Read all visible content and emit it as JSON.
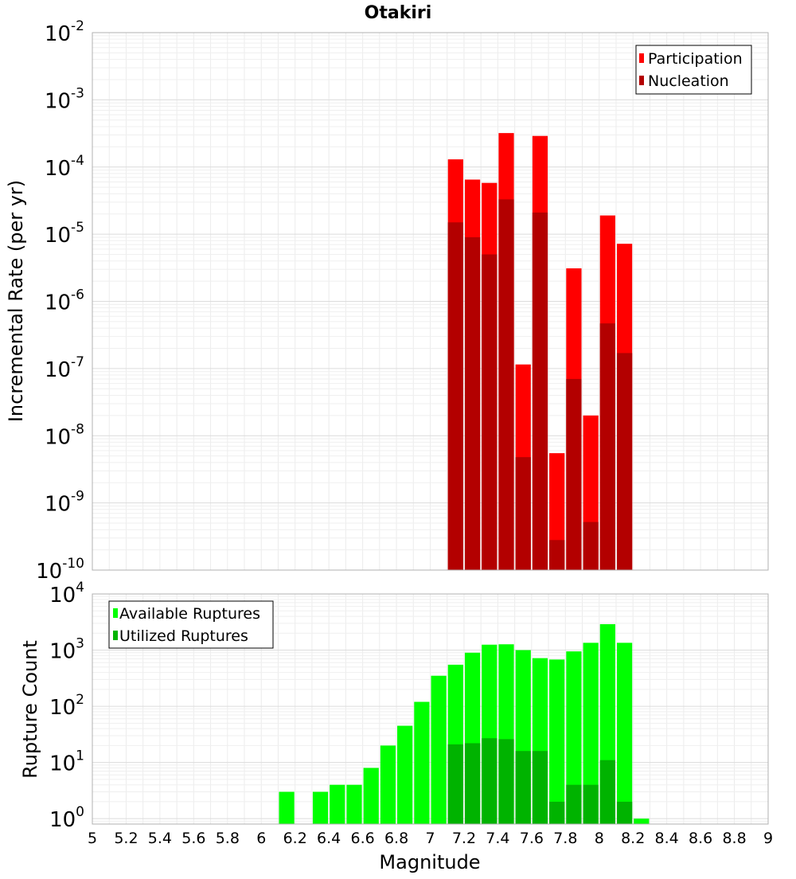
{
  "chart_data": [
    {
      "type": "bar",
      "title": "Otakiri",
      "xlabel": "",
      "ylabel": "Incremental Rate (per yr)",
      "yscale": "log",
      "ylim": [
        1e-10,
        0.01
      ],
      "xlim": [
        5,
        9
      ],
      "y_tick_bases": [
        "10",
        "10",
        "10",
        "10",
        "10",
        "10",
        "10",
        "10",
        "10"
      ],
      "y_tick_exponents": [
        "-10",
        "-9",
        "-8",
        "-7",
        "-6",
        "-5",
        "-4",
        "-3",
        "-2"
      ],
      "grid": true,
      "legend": {
        "position": "top-right",
        "entries": [
          "Participation",
          "Nucleation"
        ]
      },
      "series": [
        {
          "name": "Participation",
          "color": "#ff0000",
          "x": [
            7.15,
            7.25,
            7.35,
            7.45,
            7.55,
            7.65,
            7.75,
            7.85,
            7.95,
            8.05,
            8.15
          ],
          "values": [
            0.00013,
            6.5e-05,
            5.8e-05,
            0.00032,
            1.15e-07,
            0.00029,
            5.5e-09,
            3.1e-06,
            2e-08,
            1.9e-05,
            7.2e-06
          ]
        },
        {
          "name": "Nucleation",
          "color": "#b30000",
          "x": [
            7.15,
            7.25,
            7.35,
            7.45,
            7.55,
            7.65,
            7.75,
            7.85,
            7.95,
            8.05,
            8.15
          ],
          "values": [
            1.5e-05,
            9e-06,
            5e-06,
            3.3e-05,
            4.8e-09,
            2.1e-05,
            2.8e-10,
            7e-08,
            5.2e-10,
            4.7e-07,
            1.7e-07
          ]
        }
      ]
    },
    {
      "type": "bar",
      "title": "",
      "xlabel": "Magnitude",
      "ylabel": "Rupture Count",
      "yscale": "log",
      "ylim": [
        0.8,
        10000
      ],
      "xlim": [
        5,
        9
      ],
      "y_tick_bases": [
        "10",
        "10",
        "10",
        "10",
        "10"
      ],
      "y_tick_exponents": [
        "0",
        "1",
        "2",
        "3",
        "4"
      ],
      "x_ticks": [
        "5",
        "5.2",
        "5.4",
        "5.6",
        "5.8",
        "6",
        "6.2",
        "6.4",
        "6.6",
        "6.8",
        "7",
        "7.2",
        "7.4",
        "7.6",
        "7.8",
        "8",
        "8.2",
        "8.4",
        "8.6",
        "8.8",
        "9"
      ],
      "grid": true,
      "legend": {
        "position": "top-left",
        "entries": [
          "Available Ruptures",
          "Utilized Ruptures"
        ]
      },
      "series": [
        {
          "name": "Available Ruptures",
          "color": "#00ff00",
          "x": [
            6.15,
            6.35,
            6.45,
            6.55,
            6.65,
            6.75,
            6.85,
            6.95,
            7.05,
            7.15,
            7.25,
            7.35,
            7.45,
            7.55,
            7.65,
            7.75,
            7.85,
            7.95,
            8.05,
            8.15,
            8.25
          ],
          "values": [
            3,
            3,
            4,
            4,
            8,
            20,
            45,
            120,
            350,
            550,
            900,
            1250,
            1270,
            1000,
            720,
            680,
            950,
            1350,
            2900,
            1350,
            1
          ]
        },
        {
          "name": "Utilized Ruptures",
          "color": "#00b300",
          "x": [
            7.15,
            7.25,
            7.35,
            7.45,
            7.55,
            7.65,
            7.75,
            7.85,
            7.95,
            8.05,
            8.15
          ],
          "values": [
            21,
            22,
            27,
            26,
            16,
            16,
            2,
            4,
            4,
            11,
            2
          ]
        }
      ]
    }
  ]
}
